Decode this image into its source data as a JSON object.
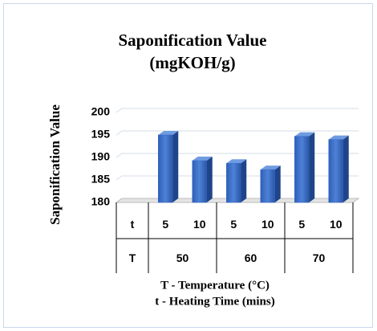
{
  "chart_data": {
    "type": "bar",
    "title_lines": [
      "Saponification Value",
      "(mgKOH/g)"
    ],
    "ylabel": "Saponification Value",
    "xlabel_lines": [
      "T - Temperature (°C)",
      "t - Heating Time (mins)"
    ],
    "row_labels": [
      "t",
      "T"
    ],
    "categories": [
      "5",
      "10",
      "5",
      "10",
      "5",
      "10"
    ],
    "groups": [
      "50",
      "60",
      "70"
    ],
    "values": [
      195,
      189.3,
      188.7,
      187.3,
      194.7,
      194.0
    ],
    "color": "#3366cc",
    "ylim": [
      180,
      200
    ],
    "yticks": [
      180,
      185,
      190,
      195,
      200
    ],
    "grid": true
  }
}
